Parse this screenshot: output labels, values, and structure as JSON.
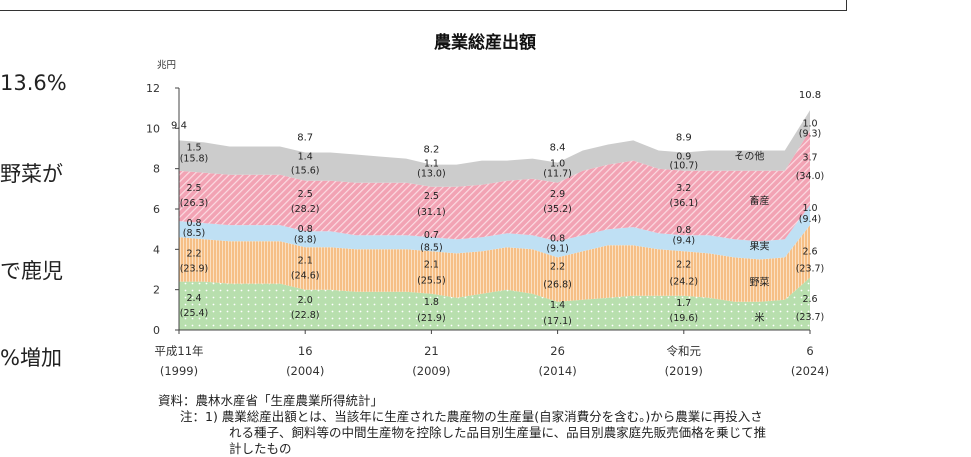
{
  "side_texts": [
    "13.6%",
    "野菜が",
    "で鹿児",
    "%増加"
  ],
  "chart_data": {
    "type": "area",
    "title": "農業総産出額",
    "unit_label": "兆円",
    "ylim": [
      0,
      12
    ],
    "yticks": [
      "0",
      "2",
      "4",
      "6",
      "8",
      "10",
      "12"
    ],
    "x": [
      1999,
      2000,
      2001,
      2002,
      2003,
      2004,
      2005,
      2006,
      2007,
      2008,
      2009,
      2010,
      2011,
      2012,
      2013,
      2014,
      2015,
      2016,
      2017,
      2018,
      2019,
      2020,
      2021,
      2022,
      2023,
      2024
    ],
    "xlim": [
      1999,
      2024
    ],
    "xticks": [
      {
        "x": 1999,
        "era": "平成11年",
        "year": "(1999)"
      },
      {
        "x": 2004,
        "era": "16",
        "year": "(2004)"
      },
      {
        "x": 2009,
        "era": "21",
        "year": "(2009)"
      },
      {
        "x": 2014,
        "era": "26",
        "year": "(2014)"
      },
      {
        "x": 2019,
        "era": "令和元",
        "year": "(2019)"
      },
      {
        "x": 2024,
        "era": "6",
        "year": "(2024)"
      }
    ],
    "colors": {
      "米": "#b8dfae",
      "野菜": "#f6bf86",
      "果実": "#bfe0f4",
      "畜産": "#f2a3b4",
      "その他": "#cccccc"
    },
    "series": [
      {
        "name": "米",
        "values": [
          2.4,
          2.4,
          2.3,
          2.3,
          2.3,
          2.0,
          2.0,
          1.9,
          1.9,
          1.9,
          1.8,
          1.6,
          1.8,
          2.0,
          1.8,
          1.4,
          1.5,
          1.6,
          1.7,
          1.7,
          1.7,
          1.6,
          1.4,
          1.4,
          1.5,
          2.6
        ]
      },
      {
        "name": "野菜",
        "values": [
          2.2,
          2.1,
          2.1,
          2.1,
          2.1,
          2.1,
          2.1,
          2.1,
          2.1,
          2.1,
          2.1,
          2.2,
          2.1,
          2.1,
          2.2,
          2.2,
          2.4,
          2.6,
          2.5,
          2.3,
          2.2,
          2.2,
          2.2,
          2.1,
          2.1,
          2.6
        ]
      },
      {
        "name": "果実",
        "values": [
          0.8,
          0.8,
          0.8,
          0.8,
          0.8,
          0.8,
          0.8,
          0.7,
          0.7,
          0.7,
          0.7,
          0.7,
          0.7,
          0.7,
          0.7,
          0.8,
          0.8,
          0.8,
          0.9,
          0.8,
          0.8,
          0.9,
          0.9,
          0.9,
          0.9,
          1.0
        ]
      },
      {
        "name": "畜産",
        "values": [
          2.5,
          2.5,
          2.5,
          2.5,
          2.5,
          2.5,
          2.5,
          2.6,
          2.6,
          2.6,
          2.5,
          2.6,
          2.6,
          2.6,
          2.8,
          2.9,
          3.2,
          3.2,
          3.3,
          3.2,
          3.2,
          3.2,
          3.4,
          3.5,
          3.4,
          3.7
        ]
      },
      {
        "name": "その他",
        "values": [
          1.5,
          1.5,
          1.4,
          1.4,
          1.4,
          1.4,
          1.4,
          1.4,
          1.3,
          1.2,
          1.1,
          1.1,
          1.2,
          1.0,
          1.0,
          1.0,
          1.0,
          1.0,
          1.0,
          0.9,
          0.9,
          1.0,
          1.0,
          1.0,
          1.0,
          1.0
        ]
      }
    ],
    "totals": [
      {
        "x": 1999,
        "text": "9.4"
      },
      {
        "x": 2004,
        "text": "8.7"
      },
      {
        "x": 2009,
        "text": "8.2"
      },
      {
        "x": 2014,
        "text": "8.4"
      },
      {
        "x": 2019,
        "text": "8.9"
      },
      {
        "x": 2024,
        "text": "10.8"
      }
    ],
    "data_labels": [
      {
        "x": 1999,
        "y": 8.9,
        "text": "1.5"
      },
      {
        "x": 1999,
        "y": 8.35,
        "text": "(15.8)"
      },
      {
        "x": 1999,
        "y": 6.9,
        "text": "2.5"
      },
      {
        "x": 1999,
        "y": 6.15,
        "text": "(26.3)"
      },
      {
        "x": 1999,
        "y": 5.15,
        "text": "0.8"
      },
      {
        "x": 1999,
        "y": 4.65,
        "text": "(8.5)"
      },
      {
        "x": 1999,
        "y": 3.65,
        "text": "2.2"
      },
      {
        "x": 1999,
        "y": 2.9,
        "text": "(23.9)"
      },
      {
        "x": 1999,
        "y": 1.45,
        "text": "2.4"
      },
      {
        "x": 1999,
        "y": 0.7,
        "text": "(25.4)"
      },
      {
        "x": 2004,
        "y": 8.45,
        "text": "1.4"
      },
      {
        "x": 2004,
        "y": 7.75,
        "text": "(15.6)"
      },
      {
        "x": 2004,
        "y": 6.6,
        "text": "2.5"
      },
      {
        "x": 2004,
        "y": 5.85,
        "text": "(28.2)"
      },
      {
        "x": 2004,
        "y": 4.85,
        "text": "0.8"
      },
      {
        "x": 2004,
        "y": 4.35,
        "text": "(8.8)"
      },
      {
        "x": 2004,
        "y": 3.3,
        "text": "2.1"
      },
      {
        "x": 2004,
        "y": 2.55,
        "text": "(24.6)"
      },
      {
        "x": 2004,
        "y": 1.35,
        "text": "2.0"
      },
      {
        "x": 2004,
        "y": 0.6,
        "text": "(22.8)"
      },
      {
        "x": 2009,
        "y": 8.1,
        "text": "1.1"
      },
      {
        "x": 2009,
        "y": 7.6,
        "text": "(13.0)"
      },
      {
        "x": 2009,
        "y": 6.5,
        "text": "2.5"
      },
      {
        "x": 2009,
        "y": 5.7,
        "text": "(31.1)"
      },
      {
        "x": 2009,
        "y": 4.55,
        "text": "0.7"
      },
      {
        "x": 2009,
        "y": 3.95,
        "text": "(8.5)"
      },
      {
        "x": 2009,
        "y": 3.1,
        "text": "2.1"
      },
      {
        "x": 2009,
        "y": 2.3,
        "text": "(25.5)"
      },
      {
        "x": 2009,
        "y": 1.25,
        "text": "1.8"
      },
      {
        "x": 2009,
        "y": 0.45,
        "text": "(21.9)"
      },
      {
        "x": 2014,
        "y": 8.1,
        "text": "1.0"
      },
      {
        "x": 2014,
        "y": 7.6,
        "text": "(11.7)"
      },
      {
        "x": 2014,
        "y": 6.6,
        "text": "2.9"
      },
      {
        "x": 2014,
        "y": 5.85,
        "text": "(35.2)"
      },
      {
        "x": 2014,
        "y": 4.4,
        "text": "0.8"
      },
      {
        "x": 2014,
        "y": 3.9,
        "text": "(9.1)"
      },
      {
        "x": 2014,
        "y": 3.0,
        "text": "2.2"
      },
      {
        "x": 2014,
        "y": 2.1,
        "text": "(26.8)"
      },
      {
        "x": 2014,
        "y": 1.1,
        "text": "1.4"
      },
      {
        "x": 2014,
        "y": 0.3,
        "text": "(17.1)"
      },
      {
        "x": 2019,
        "y": 8.45,
        "text": "0.9"
      },
      {
        "x": 2019,
        "y": 8.0,
        "text": "(10.7)"
      },
      {
        "x": 2019,
        "y": 6.9,
        "text": "3.2"
      },
      {
        "x": 2019,
        "y": 6.15,
        "text": "(36.1)"
      },
      {
        "x": 2019,
        "y": 4.8,
        "text": "0.8"
      },
      {
        "x": 2019,
        "y": 4.3,
        "text": "(9.4)"
      },
      {
        "x": 2019,
        "y": 3.1,
        "text": "2.2"
      },
      {
        "x": 2019,
        "y": 2.25,
        "text": "(24.2)"
      },
      {
        "x": 2019,
        "y": 1.2,
        "text": "1.7"
      },
      {
        "x": 2019,
        "y": 0.45,
        "text": "(19.6)"
      },
      {
        "x": 2024,
        "y": 10.1,
        "text": "1.0"
      },
      {
        "x": 2024,
        "y": 9.6,
        "text": "(9.3)"
      },
      {
        "x": 2024,
        "y": 8.4,
        "text": "3.7"
      },
      {
        "x": 2024,
        "y": 7.5,
        "text": "(34.0)"
      },
      {
        "x": 2024,
        "y": 5.9,
        "text": "1.0"
      },
      {
        "x": 2024,
        "y": 5.35,
        "text": "(9.4)"
      },
      {
        "x": 2024,
        "y": 3.75,
        "text": "2.6"
      },
      {
        "x": 2024,
        "y": 2.9,
        "text": "(23.7)"
      },
      {
        "x": 2024,
        "y": 1.4,
        "text": "2.6"
      },
      {
        "x": 2024,
        "y": 0.5,
        "text": "(23.7)"
      }
    ],
    "series_labels": [
      {
        "x": 2021.6,
        "y": 8.45,
        "text": "その他"
      },
      {
        "x": 2022.0,
        "y": 6.25,
        "text": "畜産"
      },
      {
        "x": 2022.0,
        "y": 4.0,
        "text": "果実"
      },
      {
        "x": 2022.0,
        "y": 2.2,
        "text": "野菜"
      },
      {
        "x": 2022.0,
        "y": 0.45,
        "text": "米"
      }
    ]
  },
  "notes": {
    "source": "資料：農林水産省「生産農業所得統計」",
    "note1": "注：1) 農業総産出額とは、当該年に生産された農産物の生産量(自家消費分を含む。)から農業に再投入さ",
    "note1_cont1": "れる種子、飼料等の中間生産物を控除した品目別生産量に、品目別農家庭先販売価格を乗じて推",
    "note1_cont2": "計したもの"
  }
}
